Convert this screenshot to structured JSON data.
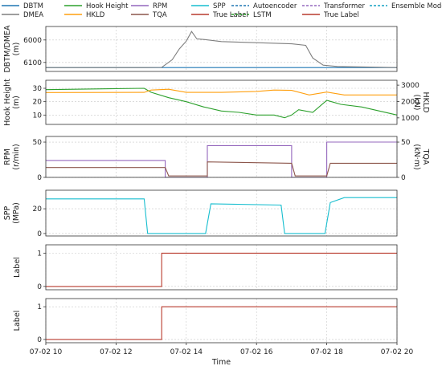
{
  "legend": {
    "items": [
      {
        "label": "DBTM",
        "color": "#1f77b4",
        "dash": "solid"
      },
      {
        "label": "Hook Height",
        "color": "#2ca02c",
        "dash": "solid"
      },
      {
        "label": "RPM",
        "color": "#9467bd",
        "dash": "solid"
      },
      {
        "label": "SPP",
        "color": "#17becf",
        "dash": "solid"
      },
      {
        "label": "Autoencoder",
        "color": "#1f77b4",
        "dash": "dashed"
      },
      {
        "label": "Transformer",
        "color": "#9467bd",
        "dash": "dashed"
      },
      {
        "label": "Ensemble Model",
        "color": "#17a2c4",
        "dash": "dashed"
      },
      {
        "label": "DMEA",
        "color": "#7f7f7f",
        "dash": "solid"
      },
      {
        "label": "HKLD",
        "color": "#ff9f0e",
        "dash": "solid"
      },
      {
        "label": "TQA",
        "color": "#8c564b",
        "dash": "solid"
      },
      {
        "label": "True Label",
        "color": "#b83a2d",
        "dash": "solid"
      },
      {
        "label": "LSTM",
        "color": "#2ca02c",
        "dash": "dashed"
      },
      {
        "label": "True Label",
        "color": "#b83a2d",
        "dash": "solid"
      }
    ]
  },
  "chart_data": [
    {
      "type": "line",
      "ylabel": "DBTM/DMEA\n(m)",
      "y_inverted": true,
      "ylim": [
        6140,
        5940
      ],
      "yticks": [
        6000,
        6100
      ],
      "xlim": [
        10,
        20
      ],
      "series": [
        {
          "name": "DBTM",
          "color": "#1f77b4",
          "x": [
            10,
            20
          ],
          "y": [
            6123,
            6123
          ]
        },
        {
          "name": "DMEA",
          "color": "#7f7f7f",
          "x": [
            10.0,
            12.8,
            13.3,
            13.6,
            13.8,
            14.0,
            14.15,
            14.3,
            14.5,
            15.0,
            16.0,
            17.0,
            17.4,
            17.6,
            17.9,
            18.1,
            18.3,
            20.0
          ],
          "y": [
            6123,
            6123,
            6122,
            6088,
            6040,
            6005,
            5962,
            5995,
            5998,
            6007,
            6012,
            6017,
            6024,
            6080,
            6112,
            6115,
            6118,
            6123
          ]
        }
      ]
    },
    {
      "type": "line",
      "ylabel": "Hook Height\n(m)",
      "ylim": [
        3,
        36
      ],
      "yticks": [
        10,
        20,
        30
      ],
      "ylabel_right": "HKLD\n(kN)",
      "ylim_right": [
        600,
        3300
      ],
      "yticks_right": [
        1000,
        2000,
        3000
      ],
      "xlim": [
        10,
        20
      ],
      "series": [
        {
          "name": "Hook Height",
          "color": "#2ca02c",
          "axis": "left",
          "x": [
            10.0,
            12.8,
            13.0,
            13.5,
            14.0,
            14.5,
            15.0,
            15.5,
            16.0,
            16.5,
            16.8,
            17.0,
            17.2,
            17.6,
            18.0,
            18.4,
            19.0,
            20.0
          ],
          "y": [
            29,
            30,
            27,
            23,
            20,
            16,
            13,
            12,
            10,
            10,
            8,
            10,
            14,
            12,
            21,
            18,
            16,
            10
          ]
        },
        {
          "name": "HKLD",
          "color": "#ff9f0e",
          "axis": "right",
          "x": [
            10.0,
            12.8,
            13.0,
            13.5,
            14.0,
            14.5,
            15.0,
            16.0,
            16.5,
            17.0,
            17.5,
            18.0,
            18.5,
            19.0,
            20.0
          ],
          "y": [
            2550,
            2560,
            2700,
            2750,
            2560,
            2560,
            2560,
            2620,
            2700,
            2680,
            2400,
            2580,
            2400,
            2400,
            2400
          ]
        }
      ]
    },
    {
      "type": "line",
      "ylabel": "RPM\n(r/min)",
      "ylim": [
        0,
        58
      ],
      "yticks": [
        0,
        50
      ],
      "ylabel_right": "TQA\n(kN·m)",
      "ylim_right": [
        0,
        58
      ],
      "yticks_right": [
        0,
        50
      ],
      "xlim": [
        10,
        20
      ],
      "series": [
        {
          "name": "RPM",
          "color": "#9467bd",
          "axis": "left",
          "x": [
            10.0,
            13.4,
            13.4,
            14.6,
            14.6,
            17.0,
            17.0,
            18.0,
            18.0,
            20.0
          ],
          "y": [
            24,
            24,
            0,
            0,
            45,
            45,
            0,
            0,
            50,
            50
          ]
        },
        {
          "name": "TQA",
          "color": "#8c564b",
          "axis": "right",
          "x": [
            10.0,
            13.4,
            13.5,
            14.6,
            14.6,
            17.0,
            17.1,
            18.0,
            18.1,
            20.0
          ],
          "y": [
            14,
            14,
            2,
            2,
            22,
            20,
            2,
            2,
            20,
            20
          ]
        }
      ]
    },
    {
      "type": "line",
      "ylabel": "SPP\n(MPa)",
      "ylim": [
        -2,
        35
      ],
      "yticks": [
        0,
        20
      ],
      "xlim": [
        10,
        20
      ],
      "series": [
        {
          "name": "SPP",
          "color": "#17becf",
          "x": [
            10.0,
            12.8,
            12.9,
            14.55,
            14.7,
            16.7,
            16.8,
            17.95,
            18.1,
            18.5,
            20.0
          ],
          "y": [
            28,
            28,
            0,
            0,
            24,
            23,
            0,
            0,
            25,
            29,
            29
          ]
        }
      ]
    },
    {
      "type": "line",
      "ylabel": "Label",
      "ylim": [
        -0.1,
        1.25
      ],
      "yticks": [
        0,
        1
      ],
      "xlim": [
        10,
        20
      ],
      "series": [
        {
          "name": "True Label",
          "color": "#b83a2d",
          "x": [
            10.0,
            13.3,
            13.3,
            20.0
          ],
          "y": [
            0,
            0,
            1,
            1
          ]
        }
      ]
    },
    {
      "type": "line",
      "ylabel": "Label",
      "xlabel": "Time",
      "ylim": [
        -0.1,
        1.25
      ],
      "yticks": [
        0,
        1
      ],
      "xlim": [
        10,
        20
      ],
      "xticks": [
        10,
        12,
        14,
        16,
        18,
        20
      ],
      "xticklabels": [
        "07-02 10",
        "07-02 12",
        "07-02 14",
        "07-02 16",
        "07-02 18",
        "07-02 20"
      ],
      "series": [
        {
          "name": "True Label",
          "color": "#b83a2d",
          "x": [
            10.0,
            13.3,
            13.3,
            20.0
          ],
          "y": [
            0,
            0,
            1,
            1
          ]
        }
      ]
    }
  ]
}
